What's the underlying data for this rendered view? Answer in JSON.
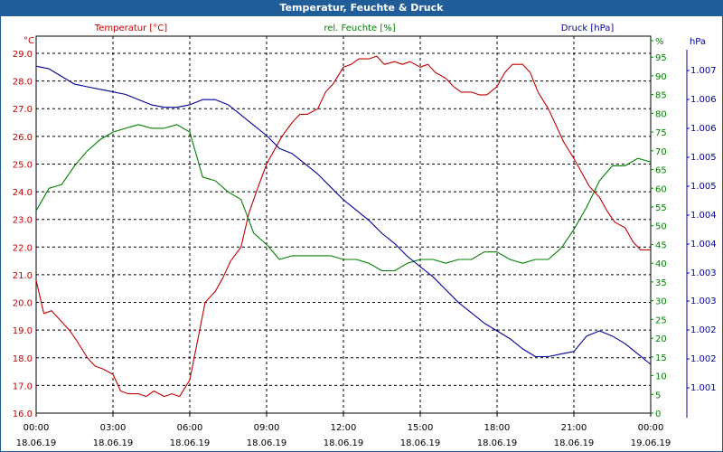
{
  "window": {
    "title": "Temperatur, Feuchte & Druck"
  },
  "colors": {
    "temperature": "#c00000",
    "humidity": "#008000",
    "pressure": "#000099",
    "title_bar": "#205d99"
  },
  "chart_data": {
    "type": "line",
    "title": "Temperatur, Feuchte & Druck",
    "grid": true,
    "x_axis": {
      "ticks": [
        {
          "time": "00:00",
          "date": "18.06.19"
        },
        {
          "time": "03:00",
          "date": "18.06.19"
        },
        {
          "time": "06:00",
          "date": "18.06.19"
        },
        {
          "time": "09:00",
          "date": "18.06.19"
        },
        {
          "time": "12:00",
          "date": "18.06.19"
        },
        {
          "time": "15:00",
          "date": "18.06.19"
        },
        {
          "time": "18:00",
          "date": "18.06.19"
        },
        {
          "time": "21:00",
          "date": "18.06.19"
        },
        {
          "time": "00:00",
          "date": "19.06.19"
        }
      ]
    },
    "y_left": {
      "unit": "°C",
      "range": [
        16.0,
        29.0
      ],
      "ticks": [
        "16.0",
        "17.0",
        "18.0",
        "19.0",
        "20.0",
        "21.0",
        "22.0",
        "23.0",
        "24.0",
        "25.0",
        "26.0",
        "27.0",
        "28.0",
        "29.0"
      ]
    },
    "y_right_humidity": {
      "unit": "%",
      "range": [
        0,
        96
      ],
      "ticks": [
        "0",
        "5",
        "10",
        "15",
        "20",
        "25",
        "30",
        "35",
        "40",
        "45",
        "50",
        "55",
        "60",
        "65",
        "70",
        "75",
        "80",
        "85",
        "90",
        "95",
        "%"
      ]
    },
    "y_right_pressure": {
      "unit": "hPa",
      "range": [
        1000.6,
        1007.6
      ],
      "ticks": [
        "1.001",
        "1.002",
        "1.002",
        "1.003",
        "1.003",
        "1.004",
        "1.004",
        "1.005",
        "1.005",
        "1.006",
        "1.006",
        "1.007"
      ]
    },
    "legend": [
      "Temperatur [°C]",
      "rel. Feuchte [%]",
      "Druck [hPa]"
    ],
    "series": [
      {
        "name": "Temperatur [°C]",
        "axis": "left",
        "x_hours": [
          0,
          0.3,
          0.6,
          1,
          1.3,
          1.6,
          2,
          2.3,
          2.6,
          3,
          3.3,
          3.6,
          4,
          4.3,
          4.6,
          5,
          5.3,
          5.6,
          6,
          6.3,
          6.6,
          7,
          7.3,
          7.6,
          8,
          8.3,
          8.6,
          9,
          9.3,
          9.6,
          10,
          10.3,
          10.6,
          11,
          11.3,
          11.6,
          12,
          12.3,
          12.6,
          13,
          13.3,
          13.6,
          14,
          14.3,
          14.6,
          15,
          15.3,
          15.6,
          16,
          16.3,
          16.6,
          17,
          17.3,
          17.6,
          18,
          18.3,
          18.6,
          19,
          19.3,
          19.6,
          20,
          20.3,
          20.6,
          21,
          21.3,
          21.6,
          22,
          22.3,
          22.6,
          23,
          23.3,
          23.6,
          24
        ],
        "values": [
          20.8,
          19.6,
          19.7,
          19.3,
          19.0,
          18.6,
          18.0,
          17.7,
          17.6,
          17.4,
          16.8,
          16.7,
          16.7,
          16.6,
          16.8,
          16.6,
          16.7,
          16.6,
          17.2,
          18.6,
          20.0,
          20.4,
          20.9,
          21.5,
          22.0,
          23.2,
          24.0,
          25.0,
          25.5,
          26.0,
          26.5,
          26.8,
          26.8,
          27.0,
          27.6,
          27.9,
          28.5,
          28.6,
          28.8,
          28.8,
          28.9,
          28.6,
          28.7,
          28.6,
          28.7,
          28.5,
          28.6,
          28.3,
          28.1,
          27.8,
          27.6,
          27.6,
          27.5,
          27.5,
          27.8,
          28.3,
          28.6,
          28.6,
          28.3,
          27.6,
          27.0,
          26.4,
          25.8,
          25.2,
          24.7,
          24.2,
          23.8,
          23.3,
          22.9,
          22.7,
          22.2,
          21.9,
          21.9
        ]
      },
      {
        "name": "rel. Feuchte [%]",
        "axis": "right_humidity",
        "x_hours": [
          0,
          0.5,
          1,
          1.5,
          2,
          2.5,
          3,
          3.5,
          4,
          4.5,
          5,
          5.5,
          6,
          6.5,
          7,
          7.5,
          8,
          8.5,
          9,
          9.5,
          10,
          10.5,
          11,
          11.5,
          12,
          12.5,
          13,
          13.5,
          14,
          14.5,
          15,
          15.5,
          16,
          16.5,
          17,
          17.5,
          18,
          18.5,
          19,
          19.5,
          20,
          20.5,
          21,
          21.5,
          22,
          22.5,
          23,
          23.5,
          24
        ],
        "values": [
          54,
          60,
          61,
          66,
          70,
          73,
          75,
          76,
          77,
          76,
          76,
          77,
          75,
          63,
          62,
          59,
          57,
          48,
          45,
          41,
          42,
          42,
          42,
          42,
          41,
          41,
          40,
          38,
          38,
          40,
          41,
          41,
          40,
          41,
          41,
          43,
          43,
          41,
          40,
          41,
          41,
          44,
          49,
          55,
          62,
          66,
          66,
          68,
          67
        ]
      },
      {
        "name": "Druck [hPa]",
        "axis": "right_pressure",
        "x_hours": [
          0,
          0.5,
          1,
          1.5,
          2,
          2.5,
          3,
          3.5,
          4,
          4.5,
          5,
          5.5,
          6,
          6.5,
          7,
          7.5,
          8,
          8.5,
          9,
          9.5,
          10,
          10.5,
          11,
          11.5,
          12,
          12.5,
          13,
          13.5,
          14,
          14.5,
          15,
          15.5,
          16,
          16.5,
          17,
          17.5,
          18,
          18.5,
          19,
          19.5,
          20,
          20.5,
          21,
          21.5,
          22,
          22.5,
          23,
          23.5,
          24
        ],
        "values": [
          1007.35,
          1007.3,
          1007.15,
          1007.0,
          1006.95,
          1006.9,
          1006.85,
          1006.8,
          1006.7,
          1006.6,
          1006.55,
          1006.55,
          1006.6,
          1006.7,
          1006.7,
          1006.6,
          1006.4,
          1006.2,
          1006.0,
          1005.75,
          1005.65,
          1005.45,
          1005.25,
          1005.0,
          1004.75,
          1004.55,
          1004.35,
          1004.1,
          1003.9,
          1003.65,
          1003.45,
          1003.25,
          1003.0,
          1002.75,
          1002.55,
          1002.35,
          1002.2,
          1002.05,
          1001.85,
          1001.7,
          1001.7,
          1001.75,
          1001.8,
          1002.1,
          1002.2,
          1002.1,
          1001.95,
          1001.75,
          1001.55
        ]
      }
    ]
  }
}
